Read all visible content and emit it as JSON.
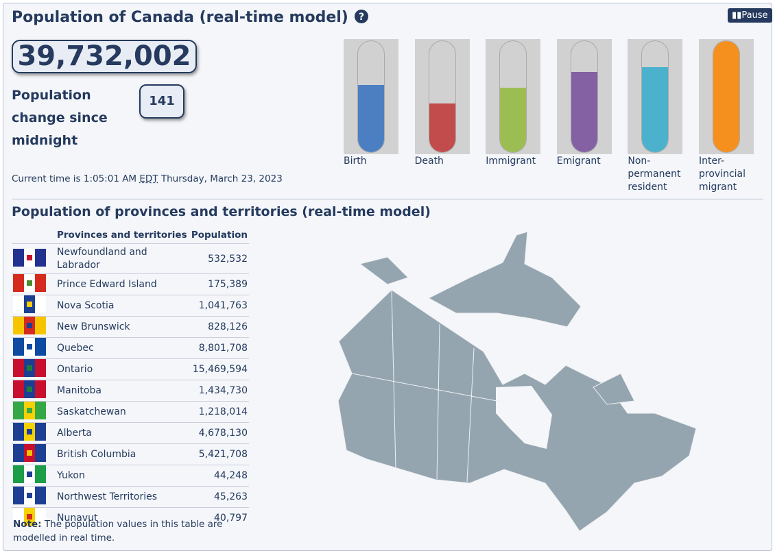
{
  "header": {
    "title": "Population of Canada (real-time model)",
    "pause": "Pause"
  },
  "population": "39,732,002",
  "change": {
    "label": "Population change since midnight",
    "value": "141"
  },
  "current_time": {
    "prefix": "Current time is 1:05:01 AM",
    "zone": "EDT",
    "date": "Thursday, March 23, 2023"
  },
  "gauges": [
    "Birth",
    "Death",
    "Immigrant",
    "Emigrant",
    "Non-permanent resident",
    "Inter-provincial migrant"
  ],
  "provinces": {
    "title": "Population of provinces and territories (real-time model)",
    "columns": [
      "Provinces and territories",
      "Population"
    ],
    "rows": [
      [
        "Newfoundland and Labrador",
        "532,532"
      ],
      [
        "Prince Edward Island",
        "175,389"
      ],
      [
        "Nova Scotia",
        "1,041,763"
      ],
      [
        "New Brunswick",
        "828,126"
      ],
      [
        "Quebec",
        "8,801,708"
      ],
      [
        "Ontario",
        "15,469,594"
      ],
      [
        "Manitoba",
        "1,434,730"
      ],
      [
        "Saskatchewan",
        "1,218,014"
      ],
      [
        "Alberta",
        "4,678,130"
      ],
      [
        "British Columbia",
        "5,421,708"
      ],
      [
        "Yukon",
        "44,248"
      ],
      [
        "Northwest Territories",
        "45,263"
      ],
      [
        "Nunavut",
        "40,797"
      ]
    ],
    "note": {
      "label": "Note:",
      "text": "The population values in this table are modelled in real time."
    }
  }
}
